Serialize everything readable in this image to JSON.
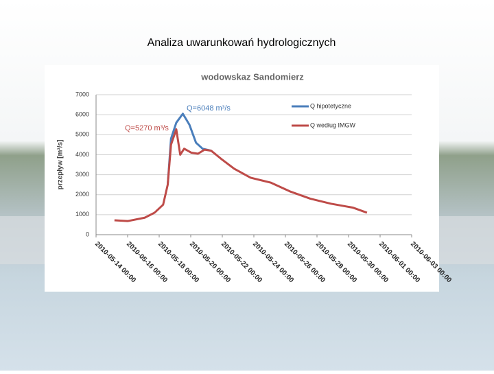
{
  "slide_title": "Analiza uwarunkowań hydrologicznych",
  "chart_data": {
    "type": "line",
    "title": "wodowskaz Sandomierz",
    "y_label": "przepływ [m³/s]",
    "annotations": [
      {
        "text": "Q=6048 m³/s",
        "color": "#4a7ebb"
      },
      {
        "text": "Q=5270 m³/s",
        "color": "#be4b48"
      }
    ],
    "xlim": [
      "2010-05-14 00:00",
      "2010-06-03 00:00"
    ],
    "xticks": [
      "2010-05-14 00:00",
      "2010-05-16 00:00",
      "2010-05-18 00:00",
      "2010-05-20 00:00",
      "2010-05-22 00:00",
      "2010-05-24 00:00",
      "2010-05-26 00:00",
      "2010-05-28 00:00",
      "2010-05-30 00:00",
      "2010-06-01 00:00",
      "2010-06-03 00:00"
    ],
    "ylim": [
      0,
      7000
    ],
    "yticks": [
      0,
      1000,
      2000,
      3000,
      4000,
      5000,
      6000,
      7000
    ],
    "grid": true,
    "series": [
      {
        "name": "Q hipotetyczne",
        "color": "#4a7ebb",
        "x": [
          "2010-05-18 13:00",
          "2010-05-18 18:00",
          "2010-05-19 02:00",
          "2010-05-19 12:00",
          "2010-05-19 22:00",
          "2010-05-20 08:00",
          "2010-05-20 18:00",
          "2010-05-21 07:00"
        ],
        "values": [
          2500,
          4800,
          5600,
          6048,
          5500,
          4600,
          4300,
          4200
        ]
      },
      {
        "name": "Q według IMGW",
        "color": "#be4b48",
        "x": [
          "2010-05-15 04:00",
          "2010-05-16 00:00",
          "2010-05-17 02:00",
          "2010-05-17 17:00",
          "2010-05-18 06:00",
          "2010-05-18 13:00",
          "2010-05-18 18:00",
          "2010-05-19 02:00",
          "2010-05-19 08:00",
          "2010-05-19 14:00",
          "2010-05-20 01:00",
          "2010-05-20 11:00",
          "2010-05-20 21:00",
          "2010-05-21 07:00",
          "2010-05-21 22:00",
          "2010-05-22 18:00",
          "2010-05-23 19:00",
          "2010-05-25 02:00",
          "2010-05-26 08:00",
          "2010-05-27 14:00",
          "2010-05-28 21:00",
          "2010-05-30 07:00",
          "2010-05-31 04:00"
        ],
        "values": [
          720,
          680,
          850,
          1100,
          1500,
          2500,
          4500,
          5270,
          4000,
          4300,
          4100,
          4050,
          4250,
          4200,
          3800,
          3300,
          2850,
          2600,
          2150,
          1800,
          1550,
          1350,
          1100
        ]
      }
    ]
  }
}
